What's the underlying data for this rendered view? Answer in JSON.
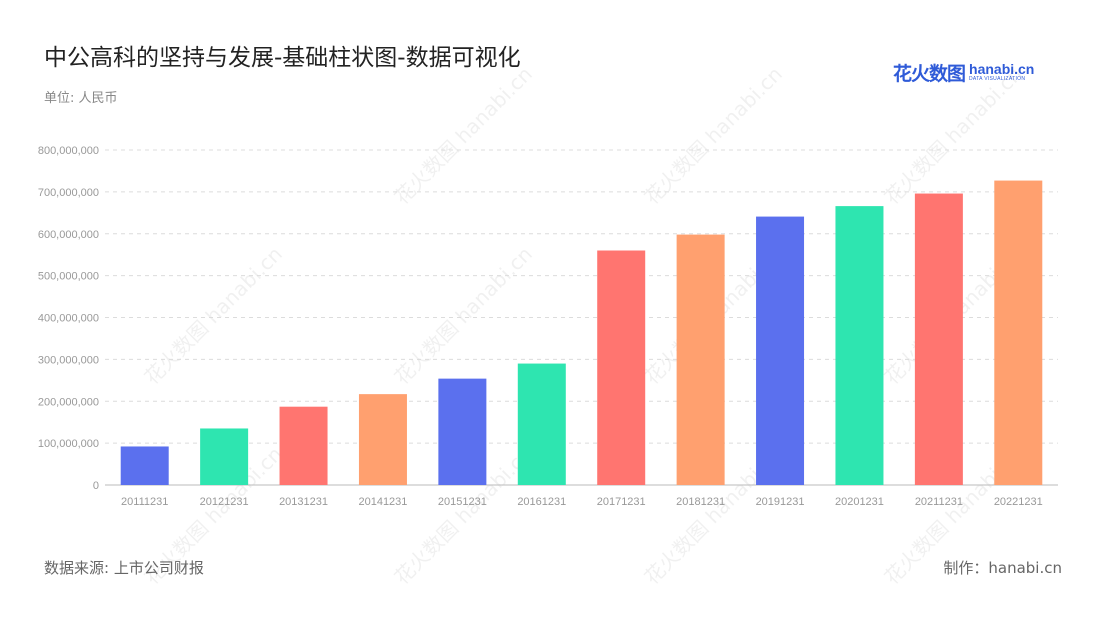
{
  "header": {
    "title": "中公高科的坚持与发展-基础柱状图-数据可视化",
    "unit": "单位: 人民币"
  },
  "logo": {
    "cn": "花火数图",
    "en": "hanabi.cn",
    "sub": "DATA VISUALIZATION",
    "color": "#2f5bd8"
  },
  "footer": {
    "source": "数据来源: 上市公司财报",
    "maker": "制作：hanabi.cn"
  },
  "watermark": "花火数图 hanabi.cn",
  "chart_data": {
    "type": "bar",
    "title": "中公高科的坚持与发展-基础柱状图-数据可视化",
    "xlabel": "",
    "ylabel": "",
    "categories": [
      "20111231",
      "20121231",
      "20131231",
      "20141231",
      "20151231",
      "20161231",
      "20171231",
      "20181231",
      "20191231",
      "20201231",
      "20211231",
      "20221231"
    ],
    "values": [
      92000000,
      135000000,
      187000000,
      217000000,
      254000000,
      290000000,
      560000000,
      598000000,
      641000000,
      666000000,
      696000000,
      727000000
    ],
    "colors": [
      "#5b70ee",
      "#2ee5b0",
      "#ff7570",
      "#ffa06f",
      "#5b70ee",
      "#2ee5b0",
      "#ff7570",
      "#ffa06f",
      "#5b70ee",
      "#2ee5b0",
      "#ff7570",
      "#ffa06f"
    ],
    "ylim": [
      0,
      800000000
    ],
    "yticks": [
      0,
      100000000,
      200000000,
      300000000,
      400000000,
      500000000,
      600000000,
      700000000,
      800000000
    ],
    "ytick_labels": [
      "0",
      "100,000,000",
      "200,000,000",
      "300,000,000",
      "400,000,000",
      "500,000,000",
      "600,000,000",
      "700,000,000",
      "800,000,000"
    ],
    "grid": true
  }
}
